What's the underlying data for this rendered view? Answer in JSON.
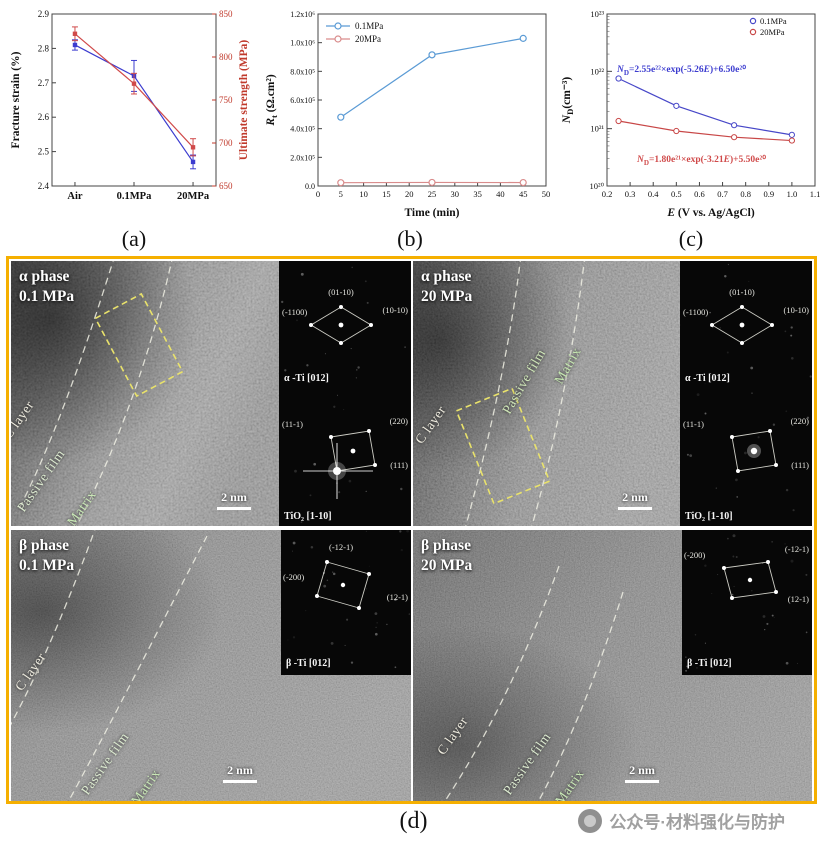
{
  "figure_labels": {
    "a": "(a)",
    "b": "(b)",
    "c": "(c)",
    "d": "(d)"
  },
  "watermark_text": "公众号·材料强化与防护",
  "chart_data": [
    {
      "id": "a",
      "type": "line",
      "categories": [
        "Air",
        "0.1MPa",
        "20MPa"
      ],
      "left_axis": {
        "label": "Fracture strain (%)",
        "min": 2.4,
        "max": 2.9,
        "tick_step": 0.1
      },
      "right_axis": {
        "label": "Ultimate strength (MPa)",
        "min": 650,
        "max": 850,
        "tick_step": 50
      },
      "series": [
        {
          "name": "fracture_strain",
          "axis": "left",
          "color": "#3c3ccf",
          "values": [
            2.81,
            2.72,
            2.47
          ],
          "errors": [
            0.015,
            0.045,
            0.02
          ]
        },
        {
          "name": "ultimate_strength",
          "axis": "right",
          "color": "#d04a4a",
          "values": [
            827,
            769,
            695
          ],
          "errors": [
            8,
            12,
            10
          ]
        }
      ]
    },
    {
      "id": "b",
      "type": "line",
      "xlabel": "Time (min)",
      "ylabel_segments": [
        {
          "t": "R",
          "s": "i"
        },
        {
          "t": "t",
          "s": "sub"
        },
        {
          "t": " (Ω.cm²)",
          "s": ""
        }
      ],
      "x_min": 0,
      "x_max": 50,
      "x_tick_step": 5,
      "y_min": 0,
      "y_max": 1200000,
      "y_tick_step": 200000,
      "y_tick_labels": [
        "0.0",
        "2.0x10⁵",
        "4.0x10⁵",
        "6.0x10⁵",
        "8.0x10⁵",
        "1.0x10⁶",
        "1.2x10⁶"
      ],
      "legend": [
        "0.1MPa",
        "20MPa"
      ],
      "series": [
        {
          "name": "0.1MPa",
          "color": "#5b9bd5",
          "x": [
            5,
            25,
            45
          ],
          "y": [
            480000,
            915000,
            1030000
          ]
        },
        {
          "name": "20MPa",
          "color": "#d98c8c",
          "x": [
            5,
            25,
            45
          ],
          "y": [
            23000,
            25000,
            24000
          ]
        }
      ]
    },
    {
      "id": "c",
      "type": "scatter",
      "xlabel_segments": [
        {
          "t": "E",
          "s": "i"
        },
        {
          "t": " (V vs. Ag/AgCl)",
          "s": ""
        }
      ],
      "ylabel_segments": [
        {
          "t": "N",
          "s": "i"
        },
        {
          "t": "D",
          "s": "sub"
        },
        {
          "t": "(cm⁻³)",
          "s": ""
        }
      ],
      "x_min": 0.2,
      "x_max": 1.1,
      "x_tick_step": 0.1,
      "y_log_min": 20,
      "y_log_max": 23,
      "y_tick_labels": [
        "10²⁰",
        "10²¹",
        "10²²",
        "10²³"
      ],
      "legend": [
        "0.1MPa",
        "20MPa"
      ],
      "series": [
        {
          "name": "0.1MPa",
          "color": "#4747c8",
          "x": [
            0.25,
            0.5,
            0.75,
            1.0
          ],
          "y": [
            7.5e+21,
            2.5e+21,
            1.15e+21,
            7.8e+20
          ]
        },
        {
          "name": "20MPa",
          "color": "#c84747",
          "x": [
            0.25,
            0.5,
            0.75,
            1.0
          ],
          "y": [
            1.36e+21,
            9.1e+20,
            7.1e+20,
            6.2e+20
          ]
        }
      ],
      "annotations": [
        {
          "color": "#3c3ccf",
          "segments": [
            {
              "t": "N",
              "s": "i"
            },
            {
              "t": "D",
              "s": "sub"
            },
            {
              "t": "=2.55e²²×exp(-5.26",
              "s": ""
            },
            {
              "t": "E",
              "s": "i"
            },
            {
              "t": ")+6.50e²⁰",
              "s": ""
            }
          ]
        },
        {
          "color": "#d04a4a",
          "segments": [
            {
              "t": "N",
              "s": "i"
            },
            {
              "t": "D",
              "s": "sub"
            },
            {
              "t": "=1.80e²¹×exp(-3.21",
              "s": ""
            },
            {
              "t": "E",
              "s": "i"
            },
            {
              "t": ")+5.50e²⁰",
              "s": ""
            }
          ]
        }
      ]
    }
  ],
  "tem": {
    "panels": [
      {
        "phase": "α phase",
        "pressure": "0.1 MPa",
        "regions": [
          "C layer",
          "Passive film",
          "Matrix"
        ],
        "scale_bar": "2 nm",
        "insets": [
          {
            "caption": "α -Ti [012]",
            "spots": [
              "(01-10)",
              "(-1100)",
              "(10-10)"
            ]
          },
          {
            "caption": "TiO₂ [1-10]",
            "spots": [
              "(11-1)",
              "(220)",
              "(111)"
            ]
          }
        ]
      },
      {
        "phase": "α phase",
        "pressure": "20 MPa",
        "regions": [
          "C layer",
          "Passive film",
          "Matrix"
        ],
        "scale_bar": "2 nm",
        "insets": [
          {
            "caption": "α -Ti [012]",
            "spots": [
              "(01-10)",
              "(-1100)",
              "(10-10)"
            ]
          },
          {
            "caption": "TiO₂ [1-10]",
            "spots": [
              "(11-1)",
              "(220)",
              "(111)"
            ]
          }
        ]
      },
      {
        "phase": "β phase",
        "pressure": "0.1 MPa",
        "regions": [
          "C layer",
          "Passive film",
          "Matrix"
        ],
        "scale_bar": "2 nm",
        "insets": [
          {
            "caption": "β -Ti [012]",
            "spots": [
              "(-12-1)",
              "(-200)",
              "(12-1)"
            ]
          }
        ]
      },
      {
        "phase": "β phase",
        "pressure": "20 MPa",
        "regions": [
          "C layer",
          "Passive film",
          "Matrix"
        ],
        "scale_bar": "2 nm",
        "insets": [
          {
            "caption": "β -Ti [012]",
            "spots": [
              "(-200)",
              "(-12-1)",
              "(12-1)"
            ]
          }
        ]
      }
    ]
  }
}
